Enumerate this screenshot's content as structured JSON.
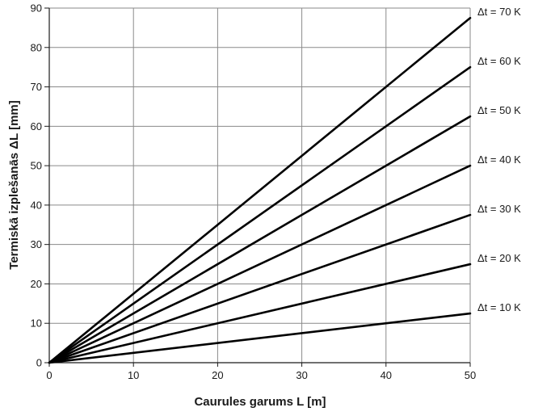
{
  "chart_data": {
    "type": "line",
    "title": "",
    "xlabel": "Caurules garums L [m]",
    "ylabel": "Termiskā izplešanās ΔL [mm]",
    "xlim": [
      0,
      50
    ],
    "ylim": [
      0,
      90
    ],
    "x_ticks": [
      0,
      10,
      20,
      30,
      40,
      50
    ],
    "y_ticks": [
      0,
      10,
      20,
      30,
      40,
      50,
      60,
      70,
      80,
      90
    ],
    "grid": true,
    "legend": "none",
    "series": [
      {
        "name": "Δt = 70 K",
        "x": [
          0,
          50
        ],
        "y": [
          0,
          87.5
        ]
      },
      {
        "name": "Δt = 60 K",
        "x": [
          0,
          50
        ],
        "y": [
          0,
          75
        ]
      },
      {
        "name": "Δt = 50 K",
        "x": [
          0,
          50
        ],
        "y": [
          0,
          62.5
        ]
      },
      {
        "name": "Δt = 40 K",
        "x": [
          0,
          50
        ],
        "y": [
          0,
          50
        ]
      },
      {
        "name": "Δt = 30 K",
        "x": [
          0,
          50
        ],
        "y": [
          0,
          37.5
        ]
      },
      {
        "name": "Δt = 20 K",
        "x": [
          0,
          50
        ],
        "y": [
          0,
          25
        ]
      },
      {
        "name": "Δt = 10 K",
        "x": [
          0,
          50
        ],
        "y": [
          0,
          12.5
        ]
      }
    ],
    "colors": {
      "series": "#000000",
      "grid": "#8a8a8a",
      "text": "#1a1a1a"
    }
  }
}
